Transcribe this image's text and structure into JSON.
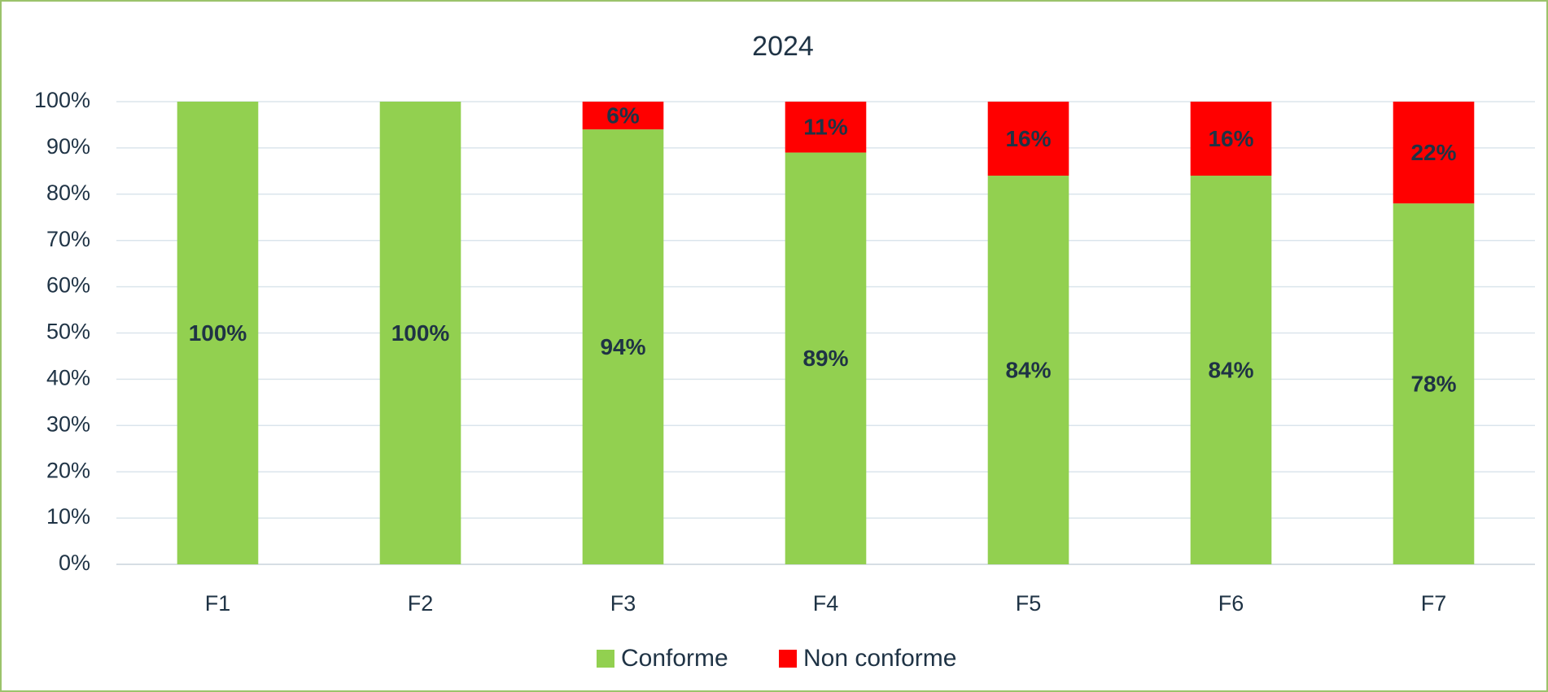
{
  "chart_data": {
    "type": "stacked_bar",
    "title": "2024",
    "categories": [
      "F1",
      "F2",
      "F3",
      "F4",
      "F5",
      "F6",
      "F7"
    ],
    "series": [
      {
        "name": "Conforme",
        "color": "#92d050",
        "values": [
          100,
          100,
          94,
          89,
          84,
          84,
          78
        ],
        "value_labels": [
          "100%",
          "100%",
          "94%",
          "89%",
          "84%",
          "84%",
          "78%"
        ]
      },
      {
        "name": "Non conforme",
        "color": "#ff0000",
        "values": [
          0,
          0,
          6,
          11,
          16,
          16,
          22
        ],
        "value_labels": [
          null,
          null,
          "6%",
          "11%",
          "16%",
          "16%",
          "22%"
        ]
      }
    ],
    "ylim": [
      0,
      100
    ],
    "yticks": [
      {
        "value": 0,
        "label": "0%"
      },
      {
        "value": 10,
        "label": "10%"
      },
      {
        "value": 20,
        "label": "20%"
      },
      {
        "value": 30,
        "label": "30%"
      },
      {
        "value": 40,
        "label": "40%"
      },
      {
        "value": 50,
        "label": "50%"
      },
      {
        "value": 60,
        "label": "60%"
      },
      {
        "value": 70,
        "label": "70%"
      },
      {
        "value": 80,
        "label": "80%"
      },
      {
        "value": 90,
        "label": "90%"
      },
      {
        "value": 100,
        "label": "100%"
      }
    ],
    "grid": true,
    "legend": "bottom"
  }
}
